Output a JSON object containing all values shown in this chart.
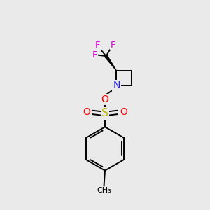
{
  "bg_color": "#eaeaea",
  "bond_color": "#000000",
  "N_color": "#2020ff",
  "O_color": "#ff0000",
  "S_color": "#bbbb00",
  "F_color": "#dd00dd",
  "line_width": 1.4,
  "fig_width": 3.0,
  "fig_height": 3.0,
  "dpi": 100,
  "xlim": [
    0,
    10
  ],
  "ylim": [
    0,
    10
  ]
}
